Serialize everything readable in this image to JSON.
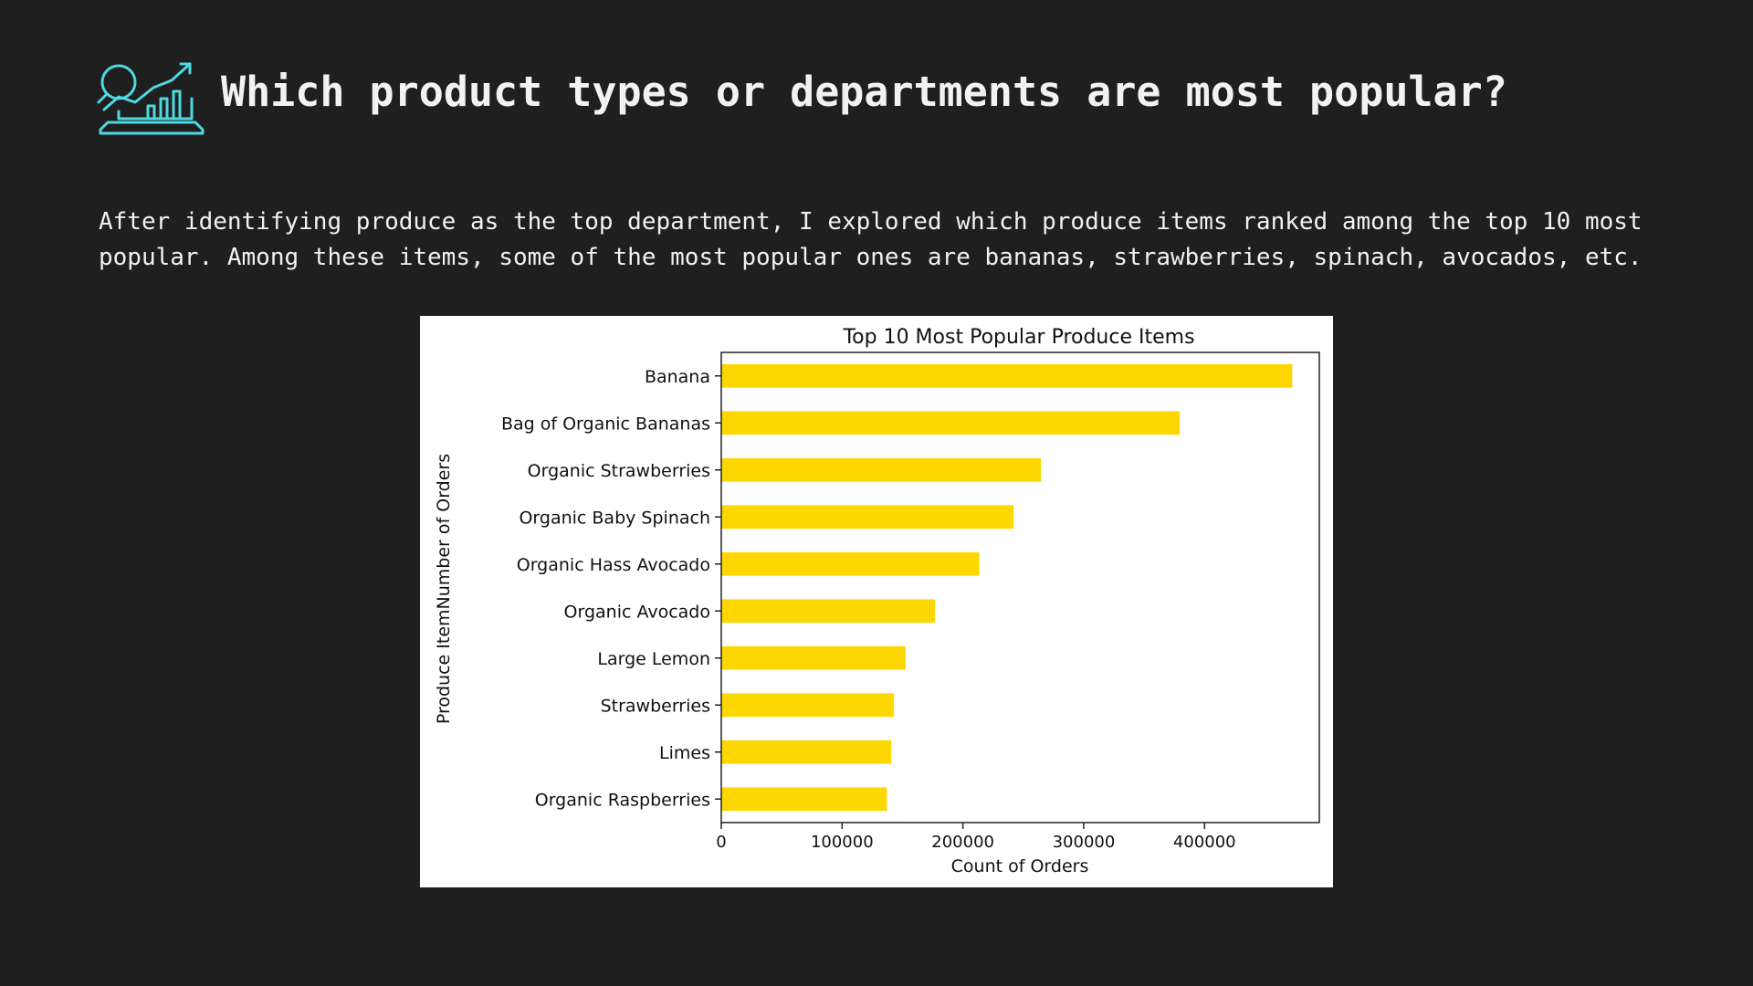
{
  "slide": {
    "title": "Which product types or departments are most popular?",
    "description": "After identifying produce as the top department, I explored which produce items ranked among the top 10 most popular. Among these items, some of the most popular ones are bananas, strawberries, spinach, avocados, etc.",
    "icon": "analytics-chart-icon",
    "accent_color": "#4dd9e0",
    "background_color": "#1f1f1f"
  },
  "chart_data": {
    "type": "bar",
    "orientation": "horizontal",
    "title": "Top 10 Most Popular Produce Items",
    "xlabel": "Count of Orders",
    "ylabel": "Produce ItemNumber of Orders",
    "categories": [
      "Banana",
      "Bag of Organic Bananas",
      "Organic Strawberries",
      "Organic Baby Spinach",
      "Organic Hass Avocado",
      "Organic Avocado",
      "Large Lemon",
      "Strawberries",
      "Limes",
      "Organic Raspberries"
    ],
    "values": [
      472565,
      379450,
      264683,
      241921,
      213584,
      176815,
      152657,
      142951,
      140627,
      137057
    ],
    "xlim": [
      0,
      495000
    ],
    "xticks": [
      0,
      100000,
      200000,
      300000,
      400000
    ],
    "xtick_labels": [
      "0",
      "100000",
      "200000",
      "300000",
      "400000"
    ],
    "bar_color": "#ffd700",
    "grid": false,
    "legend": "none"
  }
}
